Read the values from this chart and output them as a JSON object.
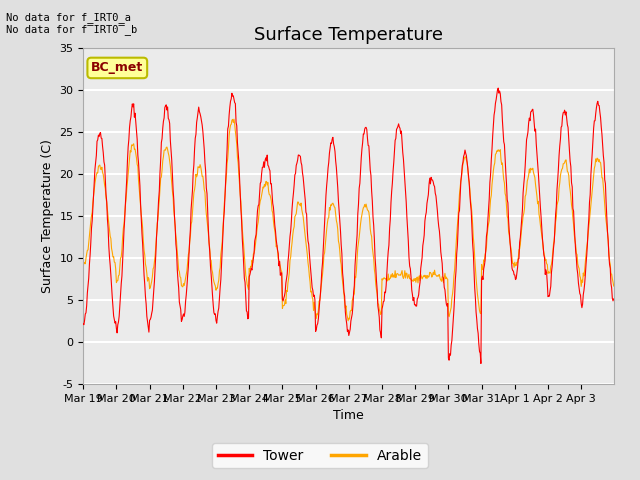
{
  "title": "Surface Temperature",
  "ylabel": "Surface Temperature (C)",
  "xlabel": "Time",
  "ylim": [
    -5,
    35
  ],
  "yticks": [
    -5,
    0,
    5,
    10,
    15,
    20,
    25,
    30,
    35
  ],
  "xtick_labels": [
    "Mar 19",
    "Mar 20",
    "Mar 21",
    "Mar 22",
    "Mar 23",
    "Mar 24",
    "Mar 25",
    "Mar 26",
    "Mar 27",
    "Mar 28",
    "Mar 29",
    "Mar 30",
    "Mar 31",
    "Apr 1",
    "Apr 2",
    "Apr 3"
  ],
  "no_data_text": [
    "No data for f_IRT0_a",
    "No data for f̅IRT0̅_b"
  ],
  "bc_met_label": "BC_met",
  "legend_entries": [
    "Tower",
    "Arable"
  ],
  "legend_colors": [
    "#ff0000",
    "#ffa500"
  ],
  "tower_color": "#ff0000",
  "arable_color": "#ffa500",
  "bg_color": "#e0e0e0",
  "plot_bg_color": "#ebebeb",
  "grid_color": "#ffffff",
  "title_fontsize": 13,
  "label_fontsize": 9,
  "tick_fontsize": 8,
  "n_days": 16,
  "tower_peaks": [
    25,
    28,
    28,
    27.5,
    29.5,
    22,
    22,
    24,
    25.5,
    26,
    19.5,
    22.5,
    30,
    27.5,
    27.5,
    28.5
  ],
  "tower_mins": [
    2,
    1.5,
    2.5,
    3,
    2.5,
    8,
    5,
    1.5,
    1,
    4,
    4.5,
    -2,
    7.5,
    7.5,
    5.5,
    4.5
  ],
  "arable_peaks": [
    21,
    23.5,
    23,
    21,
    26.5,
    19,
    16.5,
    16.5,
    16.5,
    8,
    8,
    22,
    23,
    20.5,
    21.5,
    22
  ],
  "arable_mins": [
    9,
    7,
    6.5,
    6.5,
    6,
    8.5,
    4,
    3,
    3,
    7.5,
    7.5,
    3,
    9,
    9,
    8,
    7
  ]
}
